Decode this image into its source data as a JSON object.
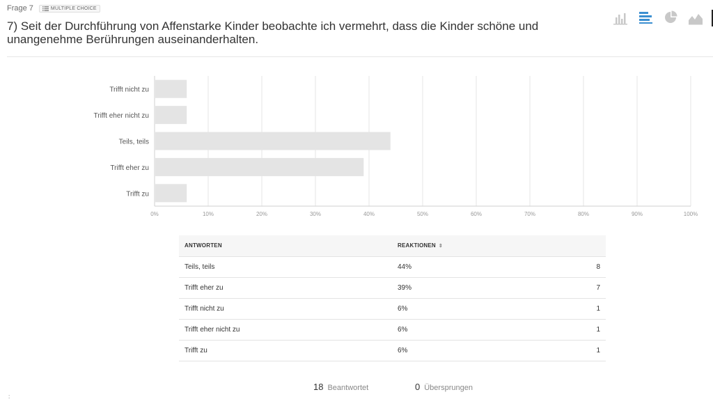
{
  "question": {
    "number_label": "Frage 7",
    "type_badge": "MULTIPLE CHOICE",
    "title": "7) Seit der Durchführung von Affenstarke Kinder beobachte ich vermehrt, dass die Kinder schöne und unangenehme Berührungen auseinanderhalten."
  },
  "chart_types": [
    "bar-chart-icon",
    "horizontal-bar-chart-icon",
    "pie-chart-icon",
    "area-chart-icon"
  ],
  "active_chart_type": "horizontal-bar-chart-icon",
  "colors": {
    "bar": "#e4e4e4",
    "grid": "#e6e6e6",
    "active_icon": "#3b8fd1",
    "inactive_icon": "#c8c8c8"
  },
  "chart_data": {
    "type": "bar",
    "orientation": "horizontal",
    "categories": [
      "Trifft nicht zu",
      "Trifft eher nicht zu",
      "Teils, teils",
      "Trifft eher zu",
      "Trifft zu"
    ],
    "values": [
      6,
      6,
      44,
      39,
      6
    ],
    "xlim": [
      0,
      100
    ],
    "xticks": [
      "0%",
      "10%",
      "20%",
      "30%",
      "40%",
      "50%",
      "60%",
      "70%",
      "80%",
      "90%",
      "100%"
    ],
    "grid": true,
    "title": "",
    "xlabel": "",
    "ylabel": ""
  },
  "table": {
    "headers": {
      "answers": "ANTWORTEN",
      "responses": "REAKTIONEN"
    },
    "rows": [
      {
        "label": "Teils, teils",
        "percent": "44%",
        "count": "8"
      },
      {
        "label": "Trifft eher zu",
        "percent": "39%",
        "count": "7"
      },
      {
        "label": "Trifft nicht zu",
        "percent": "6%",
        "count": "1"
      },
      {
        "label": "Trifft eher nicht zu",
        "percent": "6%",
        "count": "1"
      },
      {
        "label": "Trifft zu",
        "percent": "6%",
        "count": "1"
      }
    ]
  },
  "summary": {
    "answered_count": "18",
    "answered_label": "Beantwortet",
    "skipped_count": "0",
    "skipped_label": "Übersprungen"
  },
  "corner_mark": ":"
}
